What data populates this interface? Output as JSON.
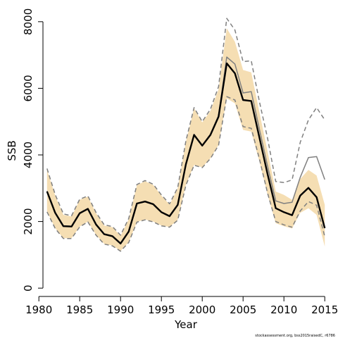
{
  "chart_data": {
    "type": "line",
    "xlabel": "Year",
    "ylabel": "SSB",
    "xlim": [
      1980.5,
      2015.5
    ],
    "ylim": [
      -250,
      8250
    ],
    "x_ticks": [
      1980,
      1985,
      1990,
      1995,
      2000,
      2005,
      2010,
      2015
    ],
    "y_ticks": [
      0,
      2000,
      4000,
      6000,
      8000
    ],
    "credit": "stockassessment.org, bss2015raisedC, r6786",
    "colors": {
      "band": "#f5deb3",
      "main_line": "#000000",
      "previous_line": "#808080",
      "previous_ci": "#808080",
      "axis": "#000000"
    },
    "x": [
      1981,
      1982,
      1983,
      1984,
      1985,
      1986,
      1987,
      1988,
      1989,
      1990,
      1991,
      1992,
      1993,
      1994,
      1995,
      1996,
      1997,
      1998,
      1999,
      2000,
      2001,
      2002,
      2003,
      2004,
      2005,
      2006,
      2007,
      2008,
      2009,
      2010,
      2011,
      2012,
      2013,
      2014,
      2015
    ],
    "series": [
      {
        "role": "estimate",
        "values": [
          2900,
          2260,
          1860,
          1850,
          2250,
          2380,
          1910,
          1620,
          1560,
          1340,
          1700,
          2540,
          2600,
          2520,
          2280,
          2160,
          2500,
          3720,
          4600,
          4280,
          4600,
          5150,
          6750,
          6450,
          5650,
          5620,
          4520,
          3420,
          2400,
          2280,
          2190,
          2780,
          3010,
          2730,
          1800
        ]
      },
      {
        "role": "estimate-lower",
        "values": [
          2300,
          1800,
          1500,
          1500,
          1850,
          2000,
          1600,
          1330,
          1280,
          1120,
          1380,
          1990,
          2060,
          2000,
          1880,
          1840,
          2050,
          3100,
          3700,
          3630,
          3900,
          4300,
          5700,
          5550,
          4750,
          4700,
          3800,
          2800,
          1950,
          1860,
          1790,
          2260,
          2400,
          2200,
          1250
        ]
      },
      {
        "role": "estimate-upper",
        "values": [
          3550,
          2780,
          2200,
          2150,
          2650,
          2750,
          2250,
          1880,
          1830,
          1570,
          2070,
          3090,
          3210,
          3100,
          2780,
          2510,
          3000,
          4400,
          5400,
          4980,
          5320,
          5970,
          7800,
          7400,
          6550,
          6480,
          5280,
          4100,
          2900,
          2800,
          2650,
          3280,
          3550,
          3380,
          2500
        ]
      },
      {
        "role": "previous-estimate",
        "values": [
          2920,
          2270,
          1870,
          1860,
          2260,
          2390,
          1920,
          1630,
          1570,
          1350,
          1710,
          2550,
          2610,
          2530,
          2290,
          2170,
          2510,
          3730,
          4620,
          4290,
          4620,
          5180,
          6940,
          6730,
          5860,
          5900,
          4770,
          3660,
          2620,
          2540,
          2580,
          3330,
          3920,
          3950,
          3260
        ]
      },
      {
        "role": "previous-lower",
        "values": [
          2290,
          1790,
          1490,
          1490,
          1840,
          1990,
          1590,
          1320,
          1270,
          1110,
          1370,
          1980,
          2050,
          1990,
          1870,
          1830,
          2040,
          3090,
          3690,
          3620,
          3890,
          4290,
          5750,
          5650,
          4850,
          4800,
          3880,
          2850,
          2000,
          1900,
          1830,
          2320,
          2600,
          2490,
          1550
        ]
      },
      {
        "role": "previous-upper",
        "values": [
          3590,
          2810,
          2230,
          2170,
          2670,
          2770,
          2270,
          1900,
          1850,
          1590,
          2090,
          3110,
          3230,
          3120,
          2800,
          2530,
          3020,
          4420,
          5420,
          5000,
          5370,
          6050,
          8100,
          7750,
          6800,
          6830,
          5600,
          4500,
          3200,
          3170,
          3250,
          4380,
          5050,
          5420,
          5050
        ]
      }
    ]
  }
}
